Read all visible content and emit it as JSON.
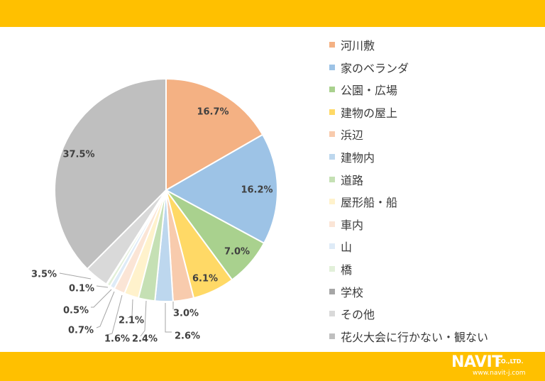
{
  "logo": {
    "text": "NAVIT",
    "co": "CO.,LTD.",
    "url": "www.navit-j.com"
  },
  "colors": {
    "bar": "#ffc000"
  },
  "chart_data": {
    "type": "pie",
    "title": "",
    "legend_position": "right",
    "series": [
      {
        "name": "河川敷",
        "value": 16.7,
        "label": "16.7%",
        "color": "#f4b183"
      },
      {
        "name": "家のベランダ",
        "value": 16.2,
        "label": "16.2%",
        "color": "#9dc3e6"
      },
      {
        "name": "公園・広場",
        "value": 7.0,
        "label": "7.0%",
        "color": "#a9d18e"
      },
      {
        "name": "建物の屋上",
        "value": 6.1,
        "label": "6.1%",
        "color": "#ffd966"
      },
      {
        "name": "浜辺",
        "value": 3.0,
        "label": "3.0%",
        "color": "#f8cbad"
      },
      {
        "name": "建物内",
        "value": 2.6,
        "label": "2.6%",
        "color": "#bdd7ee"
      },
      {
        "name": "道路",
        "value": 2.4,
        "label": "2.4%",
        "color": "#c5e0b4"
      },
      {
        "name": "屋形船・船",
        "value": 2.1,
        "label": "2.1%",
        "color": "#fff2cc"
      },
      {
        "name": "車内",
        "value": 1.6,
        "label": "1.6%",
        "color": "#fbe5d6"
      },
      {
        "name": "山",
        "value": 0.7,
        "label": "0.7%",
        "color": "#deebf7"
      },
      {
        "name": "橋",
        "value": 0.5,
        "label": "0.5%",
        "color": "#e2f0d9"
      },
      {
        "name": "学校",
        "value": 0.1,
        "label": "0.1%",
        "color": "#a6a6a6"
      },
      {
        "name": "その他",
        "value": 3.5,
        "label": "3.5%",
        "color": "#d9d9d9"
      },
      {
        "name": "花火大会に行かない・観ない",
        "value": 37.5,
        "label": "37.5%",
        "color": "#bfbfbf"
      }
    ]
  }
}
